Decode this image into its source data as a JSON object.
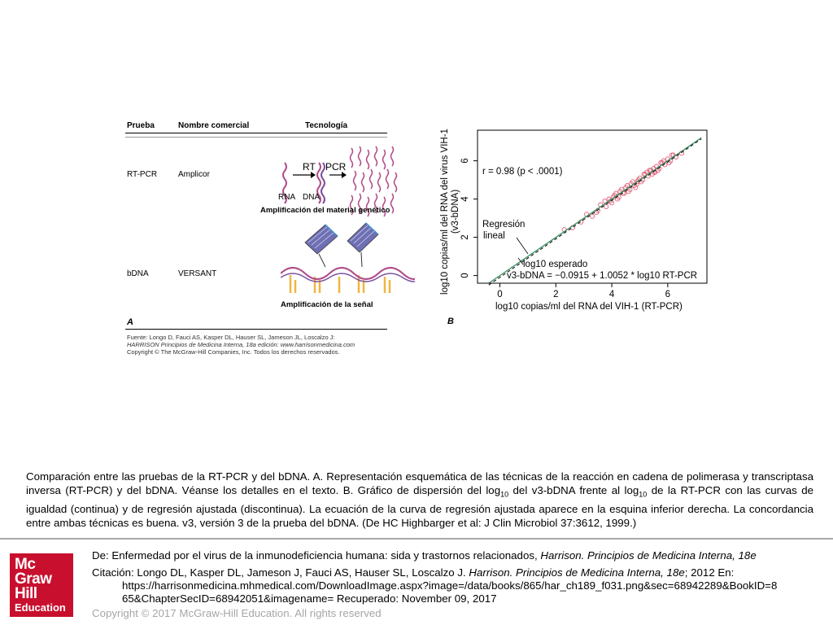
{
  "panelA": {
    "header_test": "Prueba",
    "header_name": "Nombre comercial",
    "header_tech": "Tecnología",
    "row1_test": "RT-PCR",
    "row1_name": "Amplicor",
    "rt_label": "RT",
    "pcr_label": "PCR",
    "rna_label": "RNA",
    "dna_label": "DNA",
    "amp_genetic": "Amplificación del material genético",
    "row2_test": "bDNA",
    "row2_name": "VERSANT",
    "amp_signal": "Amplificación de la señal",
    "letter": "A",
    "source_1": "Fuente: Longo D, Fauci AS, Kasper DL, Hauser SL, Jameson JL, Loscalzo J:",
    "source_2": "HARRISON Principios de Medicina Interna, 18a edición: www.harrisonmedicina.com",
    "source_3": "Copyright © The McGraw-Hill Companies, Inc. Todos los derechos reservados."
  },
  "chart_data": {
    "type": "scatter",
    "panel_letter": "B",
    "ylabel_line1": "log10 copias/ml del RNA del virus VIH-1",
    "ylabel_line2": "(v3-bDNA)",
    "xlabel": "log10 copias/ml del RNA del VIH-1 (RT-PCR)",
    "xlim": [
      -0.8,
      7.4
    ],
    "ylim": [
      -0.4,
      7.6
    ],
    "xticks": [
      "0",
      "2",
      "4",
      "6"
    ],
    "yticks": [
      "0",
      "2",
      "4",
      "6"
    ],
    "grid": false,
    "r_annotation": "r = 0.98 (p < .0001)",
    "regression_label_1": "Regresión",
    "regression_label_2": "lineal",
    "expected_label": "log10 esperado",
    "equation": "v3-bDNA = −0.0915 + 1.0052 * log10 RT-PCR",
    "point_color": "#e0607a",
    "identity_line_color": "#2e8b57",
    "regression_line_color": "#222222",
    "regression": {
      "intercept": -0.0915,
      "slope": 1.0052
    },
    "points_x": [
      2.3,
      2.6,
      2.9,
      3.1,
      3.3,
      3.5,
      3.6,
      3.8,
      3.9,
      4.0,
      4.1,
      4.2,
      4.3,
      4.4,
      4.5,
      4.6,
      4.7,
      4.8,
      4.9,
      5.0,
      5.1,
      5.2,
      5.3,
      5.4,
      5.5,
      5.6,
      5.7,
      5.8,
      5.9,
      6.0,
      6.1,
      6.2,
      6.3,
      6.5,
      4.25,
      4.55,
      4.85,
      5.15,
      5.45,
      5.75,
      3.45,
      3.75,
      4.05,
      4.35,
      4.65,
      4.95,
      5.25,
      5.55,
      5.85,
      6.15,
      3.95,
      4.45,
      4.75,
      5.05,
      5.35,
      5.65,
      4.15,
      4.9,
      5.5,
      6.05
    ],
    "points_y": [
      2.4,
      2.5,
      2.8,
      3.2,
      3.1,
      3.4,
      3.7,
      3.6,
      4.0,
      3.8,
      4.2,
      4.0,
      4.4,
      4.3,
      4.6,
      4.4,
      4.8,
      4.7,
      4.9,
      5.1,
      5.0,
      5.3,
      5.2,
      5.5,
      5.4,
      5.7,
      5.6,
      5.9,
      5.8,
      6.1,
      6.0,
      6.3,
      6.2,
      6.4,
      4.1,
      4.7,
      4.6,
      5.3,
      5.3,
      5.9,
      3.3,
      3.9,
      4.1,
      4.5,
      4.5,
      5.0,
      5.4,
      5.4,
      6.0,
      6.3,
      3.9,
      4.3,
      4.9,
      4.9,
      5.5,
      5.5,
      4.3,
      4.8,
      5.6,
      5.9
    ]
  },
  "caption": {
    "part1": "Comparación entre las pruebas de la RT-PCR y del bDNA. A. Representación esquemática de las técnicas de la reacción en cadena de polimerasa y transcriptasa inversa (RT-PCR) y del bDNA. Véanse los detalles en el texto. B. Gráfico de dispersión del log",
    "sub1": "10",
    "part2": " del v3-bDNA frente al log",
    "sub2": "10",
    "part3": " de la RT-PCR con las curvas de igualdad (continua) y de regresión ajustada (discontinua). La ecuación de la curva de regresión ajustada aparece en la esquina inferior derecha. La concordancia entre ambas técnicas es buena. v3, versión 3 de la prueba del bDNA. (De HC Highbarger et al: J Clin Microbiol 37:3612, 1999.)"
  },
  "footer": {
    "de_prefix": "De: Enfermedad por el virus de la inmunodeficiencia humana: sida y trastornos relacionados, ",
    "de_italic": "Harrison. Principios de Medicina Interna, 18e",
    "cit_prefix": "Citación: Longo DL, Kasper DL, Jameson J, Fauci AS, Hauser SL, Loscalzo J. ",
    "cit_italic": "Harrison. Principios de Medicina Interna, 18e",
    "cit_suffix": "; 2012 En:",
    "url_line1": "https://harrisonmedicina.mhmedical.com/DownloadImage.aspx?image=/data/books/865/har_ch189_f031.png&sec=68942289&BookID=8",
    "url_line2": "65&ChapterSecID=68942051&imagename= Recuperado: November 09, 2017",
    "copyright": "Copyright © 2017 McGraw-Hill Education. All rights reserved"
  },
  "logo": {
    "line1": "Mc",
    "line2": "Graw",
    "line3": "Hill",
    "line4": "Education",
    "bg_color": "#c8102e"
  }
}
